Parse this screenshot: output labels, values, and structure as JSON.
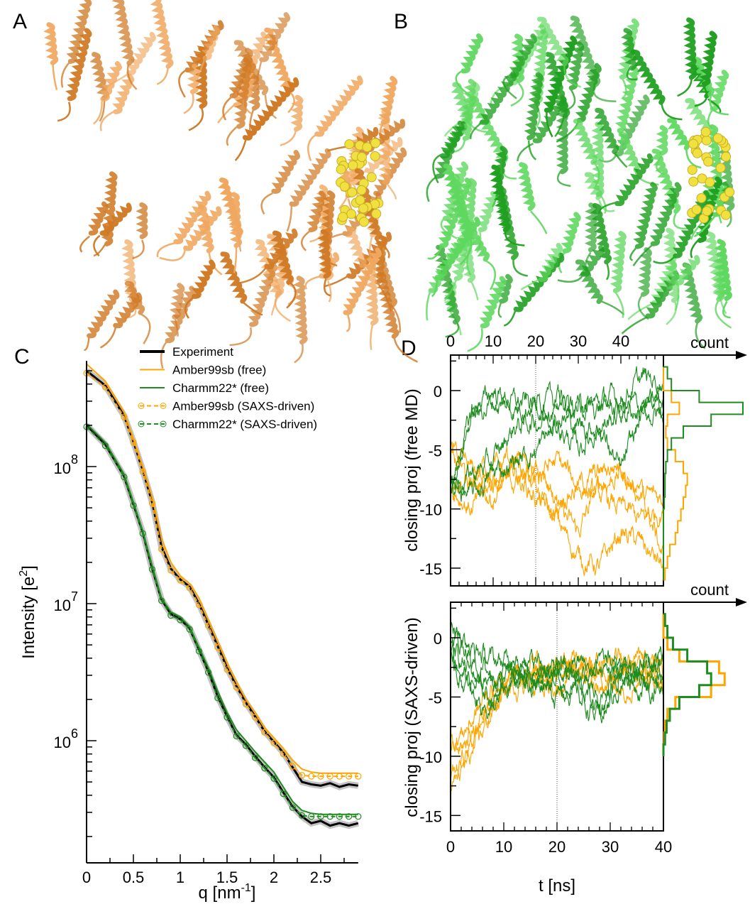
{
  "panels": {
    "A": "A",
    "B": "B",
    "C": "C",
    "D": "D"
  },
  "colors": {
    "amber": "#ffa500",
    "charmm": "#1e8c1e",
    "experiment": "#000000",
    "protein_A": "#e08a35",
    "protein_B": "#3cc43c",
    "ligand": "#f0e040"
  },
  "protein_images": [
    {
      "panel": "A",
      "description_color": "orange",
      "ligand_icon": "yellow-spheres"
    },
    {
      "panel": "B",
      "description_color": "green",
      "ligand_icon": "yellow-spheres"
    }
  ],
  "chart_data": [
    {
      "panel": "C",
      "type": "line",
      "xlabel_main": "q [nm",
      "xlabel_sup": "-1",
      "xlabel_end": "]",
      "ylabel_main": "Intensity [e",
      "ylabel_sup": "2",
      "ylabel_end": "]",
      "xlim": [
        0,
        2.9
      ],
      "ylim": [
        130000,
        590000000
      ],
      "yscale": "log",
      "xticks": [
        "0",
        "0.5",
        "1",
        "1.5",
        "2",
        "2.5"
      ],
      "xtick_values": [
        0,
        0.5,
        1,
        1.5,
        2,
        2.5
      ],
      "yticks": [
        {
          "base": "10",
          "exp": "8",
          "value": 100000000
        },
        {
          "base": "10",
          "exp": "7",
          "value": 10000000
        },
        {
          "base": "10",
          "exp": "6",
          "value": 1000000
        }
      ],
      "legend": [
        {
          "label": "Experiment",
          "style": "solid",
          "color": "#000000"
        },
        {
          "label": "Amber99sb (free)",
          "style": "solid",
          "color": "#ffa500"
        },
        {
          "label": "Charmm22* (free)",
          "style": "solid",
          "color": "#1e8c1e"
        },
        {
          "label": "Amber99sb (SAXS-driven)",
          "style": "dashed-circles",
          "color": "#ffa500"
        },
        {
          "label": "Charmm22* (SAXS-driven)",
          "style": "dashed-circles",
          "color": "#1e8c1e"
        }
      ],
      "q": [
        0,
        0.2,
        0.4,
        0.5,
        0.6,
        0.7,
        0.8,
        0.9,
        1.0,
        1.1,
        1.2,
        1.3,
        1.4,
        1.5,
        1.6,
        1.7,
        1.8,
        1.9,
        2.0,
        2.1,
        2.2,
        2.3,
        2.4,
        2.5,
        2.6,
        2.7,
        2.8,
        2.9
      ],
      "series": [
        {
          "legend": 0,
          "values": [
            500000000.0,
            390000000.0,
            235000000.0,
            152000000.0,
            94000000.0,
            55000000.0,
            26000000.0,
            18000000.0,
            15000000.0,
            13300000.0,
            10000000.0,
            7000000.0,
            4900000.0,
            3400000.0,
            2500000.0,
            1900000.0,
            1500000.0,
            1170000.0,
            980000.0,
            820000.0,
            640000.0,
            500000.0,
            480000.0,
            470000.0,
            490000.0,
            460000.0,
            480000.0,
            470000.0
          ]
        },
        {
          "legend": 0,
          "values": [
            200000000.0,
            145000000.0,
            85000000.0,
            53000000.0,
            33000000.0,
            18000000.0,
            10700000.0,
            8400000.0,
            7700000.0,
            6600000.0,
            4600000.0,
            3200000.0,
            2100000.0,
            1500000.0,
            1100000.0,
            940000.0,
            770000.0,
            640000.0,
            540000.0,
            420000.0,
            330000.0,
            280000.0,
            250000.0,
            260000.0,
            240000.0,
            250000.0,
            240000.0,
            250000.0
          ]
        },
        {
          "legend": 1,
          "values": [
            560000000.0,
            420000000.0,
            250000000.0,
            160000000.0,
            100000000.0,
            60000000.0,
            30000000.0,
            20000000.0,
            16000000.0,
            14000000.0,
            11000000.0,
            7600000.0,
            5300000.0,
            3700000.0,
            2700000.0,
            2000000.0,
            1600000.0,
            1250000.0,
            1050000.0,
            880000.0,
            720000.0,
            620000.0,
            590000.0,
            580000.0,
            580000.0,
            580000.0,
            580000.0,
            580000.0
          ]
        },
        {
          "legend": 2,
          "values": [
            205000000.0,
            150000000.0,
            88000000.0,
            55000000.0,
            34000000.0,
            19000000.0,
            11000000.0,
            8700000.0,
            8000000.0,
            6800000.0,
            4800000.0,
            3400000.0,
            2300000.0,
            1600000.0,
            1200000.0,
            1000000.0,
            830000.0,
            700000.0,
            590000.0,
            460000.0,
            360000.0,
            310000.0,
            295000.0,
            290000.0,
            290000.0,
            290000.0,
            290000.0,
            290000.0
          ]
        },
        {
          "legend": 3,
          "values": [
            480000000.0,
            380000000.0,
            230000000.0,
            150000000.0,
            92000000.0,
            54000000.0,
            25000000.0,
            17500000.0,
            14800000.0,
            13000000.0,
            9800000.0,
            6900000.0,
            4800000.0,
            3300000.0,
            2450000.0,
            1850000.0,
            1480000.0,
            1150000.0,
            960000.0,
            800000.0,
            650000.0,
            560000.0,
            550000.0,
            550000.0,
            550000.0,
            550000.0,
            550000.0,
            550000.0
          ]
        },
        {
          "legend": 4,
          "values": [
            195000000.0,
            142000000.0,
            84000000.0,
            52000000.0,
            32500000.0,
            17800000.0,
            10500000.0,
            8200000.0,
            7600000.0,
            6500000.0,
            4500000.0,
            3150000.0,
            2050000.0,
            1480000.0,
            1080000.0,
            920000.0,
            750000.0,
            630000.0,
            530000.0,
            410000.0,
            325000.0,
            285000.0,
            280000.0,
            280000.0,
            280000.0,
            280000.0,
            280000.0,
            280000.0
          ]
        }
      ]
    },
    {
      "panel": "D-top",
      "type": "line",
      "ylabel": "closing proj (free MD)",
      "count_label": "count",
      "xlim": [
        0,
        50
      ],
      "ylim": [
        -16.5,
        3
      ],
      "xticks": [
        "0",
        "10",
        "20",
        "30",
        "40"
      ],
      "xtick_values": [
        0,
        10,
        20,
        30,
        40
      ],
      "yticks": [
        "0",
        "-5",
        "-10",
        "-15"
      ],
      "ytick_values": [
        0,
        -5,
        -10,
        -15
      ],
      "dotted_line_x": 20,
      "t": [
        0,
        5,
        10,
        15,
        20,
        25,
        30,
        35,
        40,
        45,
        50
      ],
      "series": [
        {
          "force_field": "Amber99sb",
          "color": "#ffa500",
          "values": [
            -5,
            -8,
            -7,
            -6,
            -8,
            -10,
            -12,
            -8,
            -7,
            -9,
            -9
          ]
        },
        {
          "force_field": "Amber99sb",
          "color": "#ffa500",
          "values": [
            -7,
            -8,
            -9,
            -7,
            -9,
            -11,
            -14,
            -15,
            -12,
            -13,
            -15
          ]
        },
        {
          "force_field": "Amber99sb",
          "color": "#ffa500",
          "values": [
            -6,
            -7,
            -6,
            -8,
            -7,
            -6,
            -8,
            -9,
            -10,
            -11,
            -10
          ]
        },
        {
          "force_field": "Amber99sb",
          "color": "#ffa500",
          "values": [
            -8,
            -10,
            -8,
            -6,
            -7,
            -9,
            -8,
            -7,
            -6,
            -9,
            -14
          ]
        },
        {
          "force_field": "Charmm22*",
          "color": "#1e8c1e",
          "values": [
            -8,
            -2,
            0,
            -1,
            -1.2,
            -1,
            -1.5,
            -1.3,
            -1.5,
            -1.2,
            -1
          ]
        },
        {
          "force_field": "Charmm22*",
          "color": "#1e8c1e",
          "values": [
            -8,
            -2,
            -1,
            -1.5,
            -1,
            -1,
            -1.5,
            -1,
            -0.5,
            1,
            1
          ]
        },
        {
          "force_field": "Charmm22*",
          "color": "#1e8c1e",
          "values": [
            -8,
            -7,
            -6,
            -3,
            -2.5,
            -2,
            -3,
            -3,
            -2,
            -1.5,
            -1.5
          ]
        },
        {
          "force_field": "Charmm22*",
          "color": "#1e8c1e",
          "values": [
            -8,
            -9,
            -7,
            -6,
            -5,
            -3,
            -5,
            -3,
            -7,
            -2,
            -2
          ]
        }
      ],
      "histogram": {
        "bin_centers": [
          1.5,
          0.5,
          -0.5,
          -1.5,
          -2.5,
          -3.5,
          -4.5,
          -5.5,
          -6.5,
          -7.5,
          -8.5,
          -9.5,
          -10.5,
          -11.5,
          -12.5,
          -13.5,
          -14.5,
          -15.5
        ],
        "Charmm22*": [
          0.05,
          0.1,
          0.45,
          1.0,
          0.6,
          0.25,
          0.1,
          0.05,
          0.03,
          0.02,
          0.02,
          0.01,
          0,
          0,
          0,
          0,
          0,
          0
        ],
        "Amber99sb": [
          0,
          0,
          0.1,
          0.2,
          0.05,
          0.03,
          0.05,
          0.15,
          0.25,
          0.3,
          0.28,
          0.25,
          0.22,
          0.18,
          0.15,
          0.08,
          0.05,
          0.02
        ]
      }
    },
    {
      "panel": "D-bottom",
      "type": "line",
      "ylabel": "closing proj (SAXS-driven)",
      "xlabel": "t [ns]",
      "count_label": "count",
      "xlim": [
        0,
        40
      ],
      "ylim": [
        -16.3,
        3
      ],
      "xticks": [
        "0",
        "10",
        "20",
        "30",
        "40"
      ],
      "xtick_values": [
        0,
        10,
        20,
        30,
        40
      ],
      "yticks": [
        "0",
        "-5",
        "-10",
        "-15"
      ],
      "ytick_values": [
        0,
        -5,
        -10,
        -15
      ],
      "dotted_line_x": 20,
      "t": [
        0,
        4,
        8,
        12,
        16,
        20,
        24,
        28,
        32,
        36,
        40
      ],
      "series": [
        {
          "force_field": "Amber99sb",
          "color": "#ffa500",
          "values": [
            -9,
            -7,
            -4,
            -3,
            -2,
            -3,
            -2,
            -3,
            -2,
            -3,
            -2
          ]
        },
        {
          "force_field": "Amber99sb",
          "color": "#ffa500",
          "values": [
            -12,
            -9,
            -5,
            -3,
            -3,
            -2,
            -3,
            -2,
            -3,
            -2,
            -3
          ]
        },
        {
          "force_field": "Amber99sb",
          "color": "#ffa500",
          "values": [
            -13,
            -10,
            -6,
            -4,
            -3,
            -4,
            -3,
            -4,
            -3,
            -3,
            -4
          ]
        },
        {
          "force_field": "Amber99sb",
          "color": "#ffa500",
          "values": [
            -10,
            -8,
            -5,
            -3,
            -4,
            -3,
            -2,
            -3,
            -4,
            -3,
            -3
          ]
        },
        {
          "force_field": "Charmm22*",
          "color": "#1e8c1e",
          "values": [
            0,
            -1,
            -2,
            -2,
            -3,
            -2,
            -3,
            -2,
            -3,
            -2,
            -3
          ]
        },
        {
          "force_field": "Charmm22*",
          "color": "#1e8c1e",
          "values": [
            1,
            -2,
            -3,
            -2,
            -2,
            -3,
            -2,
            -3,
            -2,
            -3,
            -2
          ]
        },
        {
          "force_field": "Charmm22*",
          "color": "#1e8c1e",
          "values": [
            -1,
            -3,
            -4,
            -3,
            -4,
            -3,
            -4,
            -5,
            -3,
            -4,
            -3
          ]
        },
        {
          "force_field": "Charmm22*",
          "color": "#1e8c1e",
          "values": [
            -2,
            -5,
            -6,
            -4,
            -3,
            -5,
            -4,
            -6,
            -3,
            -4,
            -4
          ]
        },
        {
          "force_field": "Charmm22*",
          "color": "#1e8c1e",
          "values": [
            -1,
            -4,
            -5,
            -3,
            -4,
            -3,
            -5,
            -7,
            -4,
            -3,
            -2
          ]
        }
      ],
      "histogram": {
        "bin_centers": [
          1.5,
          0.5,
          -0.5,
          -1.5,
          -2.5,
          -3.5,
          -4.5,
          -5.5,
          -6.5,
          -7.5,
          -8.5,
          -9.5
        ],
        "Charmm22*": [
          0.02,
          0.05,
          0.12,
          0.3,
          0.55,
          0.6,
          0.45,
          0.2,
          0.08,
          0.04,
          0.02,
          0
        ],
        "Amber99sb": [
          0,
          0,
          0.05,
          0.2,
          0.7,
          0.77,
          0.6,
          0.15,
          0.05,
          0.02,
          0.01,
          0
        ]
      }
    }
  ]
}
